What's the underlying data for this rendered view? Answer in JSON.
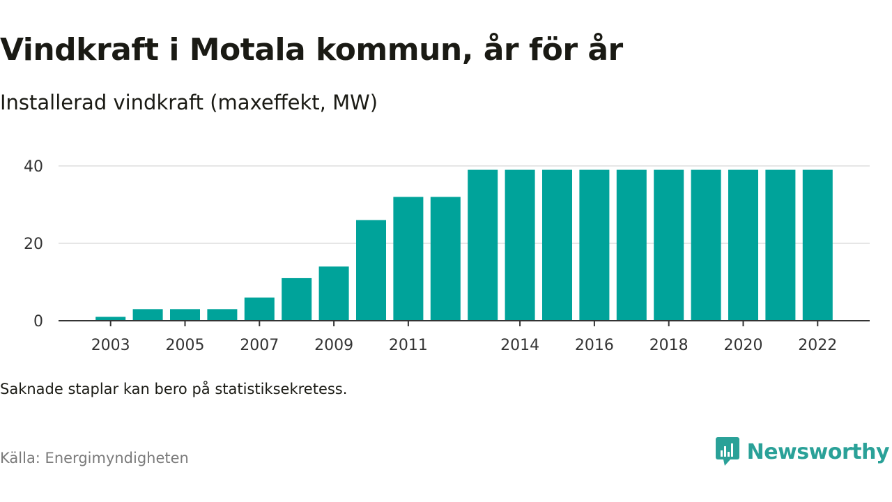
{
  "header": {
    "title": "Vindkraft i Motala kommun, år för år",
    "subtitle": "Installerad vindkraft (maxeffekt, MW)"
  },
  "footer": {
    "note": "Saknade staplar kan bero på statistiksekretess.",
    "source": "Källa: Energimyndigheten",
    "brand": "Newsworthy"
  },
  "colors": {
    "bar": "#00a39a",
    "gridline": "#dddddd",
    "axis": "#333333",
    "brand": "#2aa198"
  },
  "chart_data": {
    "type": "bar",
    "categories": [
      "2003",
      "2004",
      "2005",
      "2006",
      "2007",
      "2008",
      "2009",
      "2010",
      "2011",
      "2012",
      "2013",
      "2014",
      "2015",
      "2016",
      "2017",
      "2018",
      "2019",
      "2020",
      "2021",
      "2022"
    ],
    "values": [
      1,
      3,
      3,
      3,
      6,
      11,
      14,
      26,
      32,
      32,
      39,
      39,
      39,
      39,
      39,
      39,
      39,
      39,
      39,
      39
    ],
    "x_tick_labels": [
      "2003",
      "2005",
      "2007",
      "2009",
      "2011",
      "2014",
      "2016",
      "2018",
      "2020",
      "2022"
    ],
    "y_ticks": [
      0,
      20,
      40
    ],
    "ylim": [
      0,
      40
    ],
    "grid": true,
    "title": "Vindkraft i Motala kommun, år för år",
    "subtitle": "Installerad vindkraft (maxeffekt, MW)",
    "xlabel": "",
    "ylabel": ""
  }
}
